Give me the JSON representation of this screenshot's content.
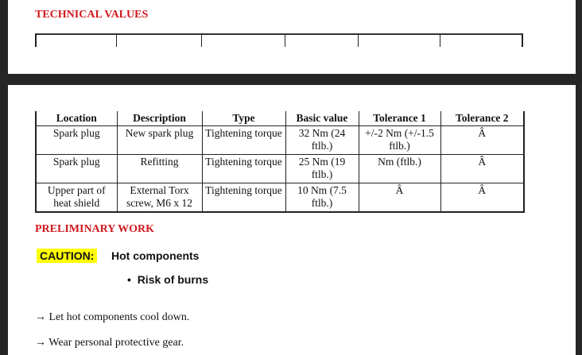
{
  "section1": {
    "heading": "TECHNICAL VALUES"
  },
  "table": {
    "headers": [
      "Location",
      "Description",
      "Type",
      "Basic value",
      "Tolerance 1",
      "Tolerance 2"
    ],
    "rows": [
      [
        "Spark plug",
        "New spark plug",
        "Tightening torque",
        "32 Nm (24 ftlb.)",
        "+/-2 Nm (+/-1.5 ftlb.)",
        "Â"
      ],
      [
        "Spark plug",
        "Refitting",
        "Tightening torque",
        "25 Nm (19 ftlb.)",
        "Nm (ftlb.)",
        "Â"
      ],
      [
        "Upper part of heat shield",
        "External Torx screw, M6 x 12",
        "Tightening torque",
        "10 Nm (7.5 ftlb.)",
        "Â",
        "Â"
      ]
    ]
  },
  "section2": {
    "heading": "PRELIMINARY WORK",
    "caution_label": "CAUTION:",
    "caution_text": "Hot components",
    "bullet": "Risk of burns",
    "steps": [
      "Let hot components cool down.",
      "Wear personal protective gear."
    ],
    "arrow": "→"
  },
  "colors": {
    "heading": "#d0191d",
    "highlight": "#ffff00"
  }
}
